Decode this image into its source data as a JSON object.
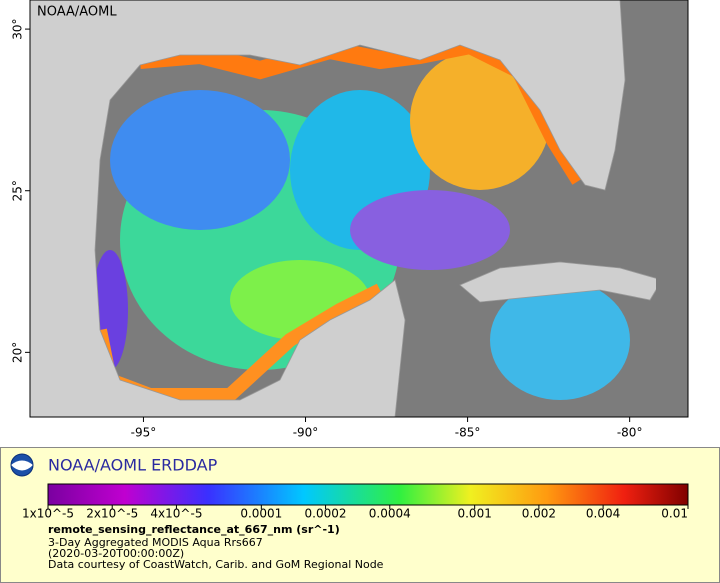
{
  "map": {
    "watermark": "NOAA/AOML",
    "xlim": [
      -98.5,
      -78.2
    ],
    "ylim": [
      18.0,
      30.9
    ],
    "xticks": [
      {
        "value": -95,
        "label": "-95°"
      },
      {
        "value": -90,
        "label": "-90°"
      },
      {
        "value": -85,
        "label": "-85°"
      },
      {
        "value": -80,
        "label": "-80°"
      }
    ],
    "yticks": [
      {
        "value": 20,
        "label": "20°"
      },
      {
        "value": 25,
        "label": "25°"
      },
      {
        "value": 30,
        "label": "30°"
      }
    ]
  },
  "legend": {
    "title": "NOAA/AOML ERDDAP",
    "scale": "log",
    "lim": [
      1e-05,
      0.01
    ],
    "ticks": [
      {
        "value": 1e-05,
        "label": "1x10^-5"
      },
      {
        "value": 2e-05,
        "label": "2x10^-5"
      },
      {
        "value": 4e-05,
        "label": "4x10^-5"
      },
      0.0001,
      0.0002,
      0.0004,
      0.001,
      0.002,
      0.004,
      0.01
    ],
    "variable": "remote_sensing_reflectance_at_667_nm (sr^-1)",
    "lines": [
      "3-Day Aggregated MODIS Aqua Rrs667",
      "(2020-03-20T00:00:00Z)",
      "Data courtesy of CoastWatch, Carib. and GoM Regional Node"
    ]
  }
}
